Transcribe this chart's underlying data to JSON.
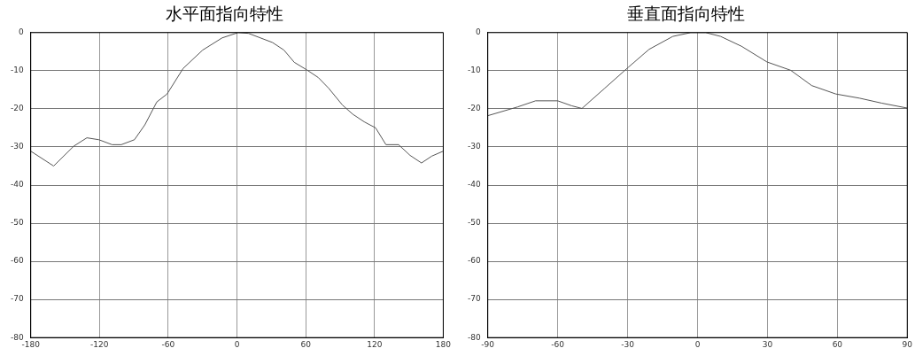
{
  "chart_data": [
    {
      "type": "line",
      "title": "水平面指向特性",
      "x": [
        -180,
        -160,
        -142.5,
        -131,
        -120.5,
        -109,
        -101,
        -89.5,
        -80.4,
        -70,
        -61,
        -47,
        -30,
        -13,
        1,
        10,
        31,
        41,
        50,
        61,
        71,
        80,
        92,
        101,
        111,
        121,
        130,
        141,
        151,
        161,
        170,
        180
      ],
      "series": [
        {
          "color": "#555555",
          "values": [
            -31.1,
            -35,
            -29.8,
            -27.6,
            -28.1,
            -29.4,
            -29.4,
            -28.1,
            -24.2,
            -18.2,
            -16.1,
            -9.4,
            -4.6,
            -1.4,
            0,
            -0.2,
            -2.6,
            -4.6,
            -7.8,
            -9.8,
            -11.8,
            -14.6,
            -19,
            -21.4,
            -23.4,
            -25,
            -29.4,
            -29.4,
            -32.2,
            -34.2,
            -32.4,
            -31.1
          ]
        }
      ],
      "xlim": [
        -180,
        180
      ],
      "xticks": [
        -180,
        -120,
        -60,
        0,
        60,
        120,
        180
      ],
      "ylim": [
        -80,
        0
      ],
      "yticks": [
        -80,
        -70,
        -60,
        -50,
        -40,
        -30,
        -20,
        -10,
        0
      ],
      "grid": true,
      "legend": false,
      "marker": "none",
      "line_style": "solid"
    },
    {
      "type": "line",
      "title": "垂直面指向特性",
      "x": [
        -90,
        -77.2,
        -69.5,
        -60,
        -54,
        -49.6,
        -40,
        -29.7,
        -20.8,
        -10.6,
        -2.9,
        3.5,
        9.9,
        18.9,
        29.8,
        40,
        49,
        59.3,
        69.5,
        79,
        90
      ],
      "series": [
        {
          "color": "#555555",
          "values": [
            -21.8,
            -19.5,
            -17.9,
            -17.9,
            -19.2,
            -19.9,
            -14.7,
            -9.1,
            -4.4,
            -1,
            0,
            0,
            -1,
            -3.6,
            -7.7,
            -9.9,
            -13.9,
            -16.1,
            -17.2,
            -18.5,
            -19.8
          ]
        }
      ],
      "xlim": [
        -90,
        90
      ],
      "xticks": [
        -90,
        -60,
        -30,
        0,
        30,
        60,
        90
      ],
      "ylim": [
        -80,
        0
      ],
      "yticks": [
        -80,
        -70,
        -60,
        -50,
        -40,
        -30,
        -20,
        -10,
        0
      ],
      "grid": true,
      "legend": false,
      "marker": "none",
      "line_style": "solid"
    }
  ]
}
